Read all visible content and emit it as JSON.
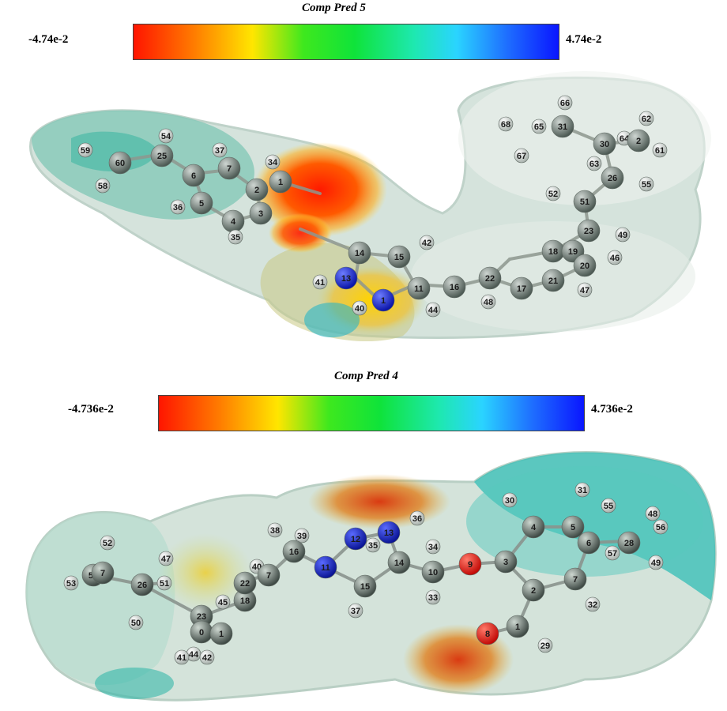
{
  "top": {
    "title": "Comp Pred 5",
    "scale_min": "-4.74e-2",
    "scale_max": "4.74e-2",
    "atoms": [
      {
        "n": "59",
        "c": "w"
      },
      {
        "n": "60",
        "c": "g"
      },
      {
        "n": "58",
        "c": "w"
      },
      {
        "n": "54",
        "c": "w"
      },
      {
        "n": "25",
        "c": "g"
      },
      {
        "n": "37",
        "c": "w"
      },
      {
        "n": "6",
        "c": "g"
      },
      {
        "n": "7",
        "c": "g"
      },
      {
        "n": "5",
        "c": "g"
      },
      {
        "n": "36",
        "c": "w"
      },
      {
        "n": "34",
        "c": "w"
      },
      {
        "n": "1",
        "c": "g"
      },
      {
        "n": "2",
        "c": "g"
      },
      {
        "n": "3",
        "c": "g"
      },
      {
        "n": "4",
        "c": "g"
      },
      {
        "n": "35",
        "c": "w"
      },
      {
        "n": "14",
        "c": "g"
      },
      {
        "n": "15",
        "c": "g"
      },
      {
        "n": "42",
        "c": "w"
      },
      {
        "n": "13",
        "c": "b"
      },
      {
        "n": "41",
        "c": "w"
      },
      {
        "n": "1",
        "c": "b"
      },
      {
        "n": "40",
        "c": "w"
      },
      {
        "n": "11",
        "c": "g"
      },
      {
        "n": "16",
        "c": "g"
      },
      {
        "n": "44",
        "c": "w"
      },
      {
        "n": "17",
        "c": "g"
      },
      {
        "n": "22",
        "c": "g"
      },
      {
        "n": "48",
        "c": "w"
      },
      {
        "n": "18",
        "c": "g"
      },
      {
        "n": "19",
        "c": "g"
      },
      {
        "n": "20",
        "c": "g"
      },
      {
        "n": "21",
        "c": "g"
      },
      {
        "n": "46",
        "c": "w"
      },
      {
        "n": "47",
        "c": "w"
      },
      {
        "n": "23",
        "c": "g"
      },
      {
        "n": "49",
        "c": "w"
      },
      {
        "n": "52",
        "c": "w"
      },
      {
        "n": "51",
        "c": "g"
      },
      {
        "n": "26",
        "c": "g"
      },
      {
        "n": "55",
        "c": "w"
      },
      {
        "n": "63",
        "c": "w"
      },
      {
        "n": "30",
        "c": "g"
      },
      {
        "n": "64",
        "c": "w"
      },
      {
        "n": "62",
        "c": "w"
      },
      {
        "n": "61",
        "c": "w"
      },
      {
        "n": "31",
        "c": "g"
      },
      {
        "n": "65",
        "c": "w"
      },
      {
        "n": "66",
        "c": "w"
      },
      {
        "n": "68",
        "c": "w"
      },
      {
        "n": "67",
        "c": "w"
      },
      {
        "n": "2",
        "c": "g"
      }
    ]
  },
  "bottom": {
    "title": "Comp Pred 4",
    "scale_min": "-4.736e-2",
    "scale_max": "4.736e-2",
    "atoms": [
      {
        "n": "52",
        "c": "w"
      },
      {
        "n": "54",
        "c": "g"
      },
      {
        "n": "53",
        "c": "w"
      },
      {
        "n": "7",
        "c": "g"
      },
      {
        "n": "26",
        "c": "g"
      },
      {
        "n": "50",
        "c": "w"
      },
      {
        "n": "47",
        "c": "w"
      },
      {
        "n": "51",
        "c": "w"
      },
      {
        "n": "23",
        "c": "g"
      },
      {
        "n": "45",
        "c": "w"
      },
      {
        "n": "0",
        "c": "g"
      },
      {
        "n": "1",
        "c": "g"
      },
      {
        "n": "44",
        "c": "w"
      },
      {
        "n": "41",
        "c": "w"
      },
      {
        "n": "42",
        "c": "w"
      },
      {
        "n": "18",
        "c": "g"
      },
      {
        "n": "22",
        "c": "g"
      },
      {
        "n": "40",
        "c": "w"
      },
      {
        "n": "7",
        "c": "g"
      },
      {
        "n": "38",
        "c": "w"
      },
      {
        "n": "39",
        "c": "w"
      },
      {
        "n": "16",
        "c": "g"
      },
      {
        "n": "11",
        "c": "b"
      },
      {
        "n": "12",
        "c": "b"
      },
      {
        "n": "13",
        "c": "b"
      },
      {
        "n": "36",
        "c": "w"
      },
      {
        "n": "35",
        "c": "w"
      },
      {
        "n": "14",
        "c": "g"
      },
      {
        "n": "15",
        "c": "g"
      },
      {
        "n": "37",
        "c": "w"
      },
      {
        "n": "34",
        "c": "w"
      },
      {
        "n": "10",
        "c": "g"
      },
      {
        "n": "33",
        "c": "w"
      },
      {
        "n": "9",
        "c": "r"
      },
      {
        "n": "3",
        "c": "g"
      },
      {
        "n": "30",
        "c": "w"
      },
      {
        "n": "4",
        "c": "g"
      },
      {
        "n": "5",
        "c": "g"
      },
      {
        "n": "31",
        "c": "w"
      },
      {
        "n": "6",
        "c": "g"
      },
      {
        "n": "2",
        "c": "g"
      },
      {
        "n": "7",
        "c": "g"
      },
      {
        "n": "32",
        "c": "w"
      },
      {
        "n": "1",
        "c": "g"
      },
      {
        "n": "8",
        "c": "r"
      },
      {
        "n": "29",
        "c": "w"
      },
      {
        "n": "55",
        "c": "w"
      },
      {
        "n": "28",
        "c": "g"
      },
      {
        "n": "48",
        "c": "w"
      },
      {
        "n": "56",
        "c": "w"
      },
      {
        "n": "57",
        "c": "w"
      },
      {
        "n": "49",
        "c": "w"
      }
    ]
  },
  "colors": {
    "carbon": "#7b8a82",
    "hydrogen": "#e8ece9",
    "nitrogen": "#1d2fd6",
    "oxygen": "#ee1410"
  }
}
